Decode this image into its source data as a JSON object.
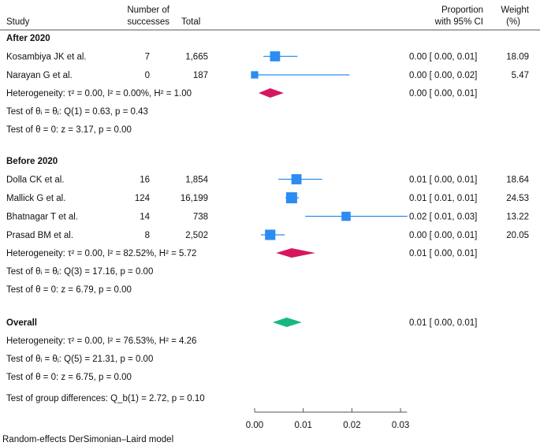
{
  "chart_data": {
    "type": "forest",
    "headers": {
      "study": "Study",
      "successes": [
        "Number of",
        "successes"
      ],
      "total": "Total",
      "ci": [
        "Proportion",
        "with 95% CI"
      ],
      "weight": [
        "Weight",
        "(%)"
      ]
    },
    "xaxis": {
      "ticks": [
        0.0,
        0.01,
        0.02,
        0.03
      ],
      "tick_labels": [
        "0.00",
        "0.01",
        "0.02",
        "0.03"
      ],
      "range": [
        0,
        0.031
      ]
    },
    "colors": {
      "study": "#2b8cf2",
      "after_diamond": "#d6175f",
      "before_diamond": "#d6175f",
      "overall_diamond": "#19b77f"
    },
    "groups": [
      {
        "label": "After 2020",
        "studies": [
          {
            "study": "Kosambiya JK et al.",
            "successes": "7",
            "total": "1,665",
            "est": 0.0042,
            "lo": 0.0018,
            "hi": 0.0088,
            "ci_text": "0.00 [ 0.00,  0.01]",
            "weight": "18.09"
          },
          {
            "study": "Narayan G et al.",
            "successes": "0",
            "total": "187",
            "est": 0.0,
            "lo": 0.0,
            "hi": 0.0195,
            "ci_text": "0.00 [ 0.00,  0.02]",
            "weight": "5.47"
          }
        ],
        "summary": {
          "est": 0.0032,
          "lo": 0.0008,
          "hi": 0.006,
          "ci_text": "0.00 [ 0.00,  0.01]"
        },
        "heterogeneity": "Heterogeneity: τ² = 0.00, I² = 0.00%, H² = 1.00",
        "test_q": "Test of θᵢ = θⱼ: Q(1) = 0.63, p = 0.43",
        "test_z": "Test of θ = 0: z = 3.17, p = 0.00"
      },
      {
        "label": "Before 2020",
        "studies": [
          {
            "study": "Dolla CK et al.",
            "successes": "16",
            "total": "1,854",
            "est": 0.0086,
            "lo": 0.0049,
            "hi": 0.0139,
            "ci_text": "0.01 [ 0.00,  0.01]",
            "weight": "18.64"
          },
          {
            "study": "Mallick G et al.",
            "successes": "124",
            "total": "16,199",
            "est": 0.0076,
            "lo": 0.0063,
            "hi": 0.0091,
            "ci_text": "0.01 [ 0.01,  0.01]",
            "weight": "24.53"
          },
          {
            "study": "Bhatnagar T et al.",
            "successes": "14",
            "total": "738",
            "est": 0.0188,
            "lo": 0.0104,
            "hi": 0.0314,
            "ci_text": "0.02 [ 0.01,  0.03]",
            "weight": "13.22"
          },
          {
            "study": "Prasad BM et al.",
            "successes": "8",
            "total": "2,502",
            "est": 0.0032,
            "lo": 0.0013,
            "hi": 0.0062,
            "ci_text": "0.00 [ 0.00,  0.01]",
            "weight": "20.05"
          }
        ],
        "summary": {
          "est": 0.0076,
          "lo": 0.0044,
          "hi": 0.0125,
          "ci_text": "0.01 [ 0.00,  0.01]"
        },
        "heterogeneity": "Heterogeneity: τ² = 0.00, I² = 82.52%, H² = 5.72",
        "test_q": "Test of θᵢ = θⱼ: Q(3) = 17.16, p = 0.00",
        "test_z": "Test of θ = 0: z = 6.79, p = 0.00"
      }
    ],
    "overall": {
      "label": "Overall",
      "est": 0.0066,
      "lo": 0.0037,
      "hi": 0.0097,
      "ci_text": "0.01 [ 0.00,  0.01]",
      "heterogeneity": "Heterogeneity: τ² = 0.00, I² = 76.53%, H² = 4.26",
      "test_q": "Test of θᵢ = θⱼ: Q(5) = 21.31, p = 0.00",
      "test_z": "Test of θ = 0: z = 6.75, p = 0.00",
      "group_diff": "Test of group differences: Q_b(1) = 2.72, p = 0.10"
    },
    "footnote": "Random-effects DerSimonian–Laird model"
  }
}
